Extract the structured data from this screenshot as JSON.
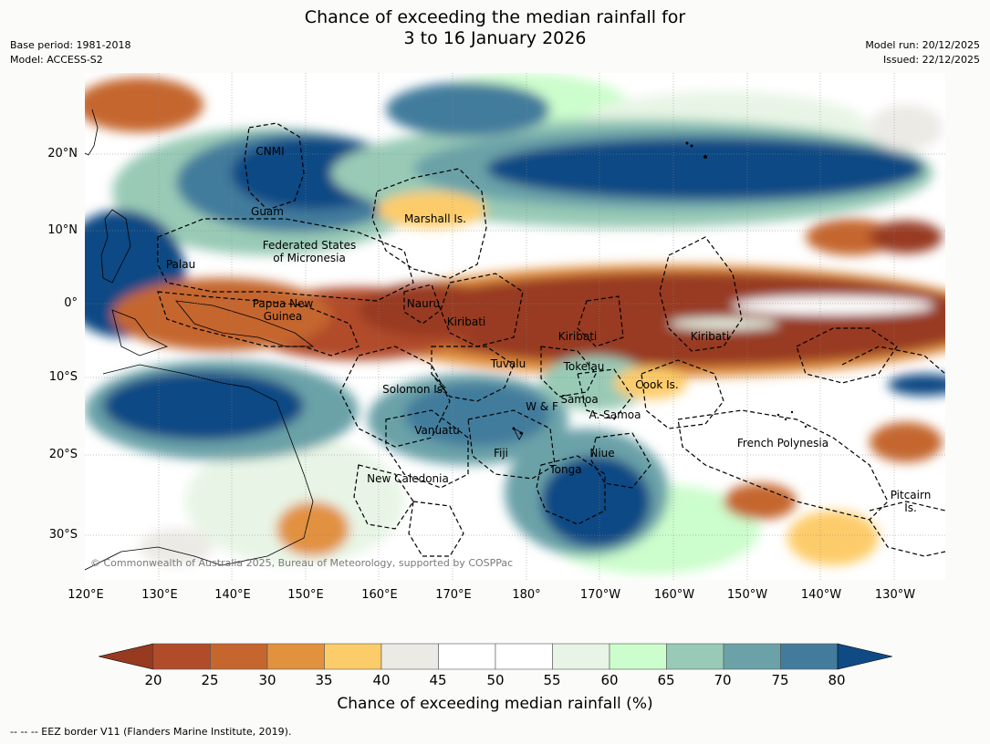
{
  "title_line1": "Chance of exceeding the median rainfall for",
  "title_line2": "3 to 16 January 2026",
  "meta_left": [
    "Base period: 1981-2018",
    "Model: ACCESS-S2"
  ],
  "meta_right": [
    "Model run: 20/12/2025",
    "Issued: 22/12/2025"
  ],
  "lat_labels": [
    "20°N",
    "10°N",
    "0°",
    "10°S",
    "20°S",
    "30°S"
  ],
  "lon_labels": [
    "120°E",
    "130°E",
    "140°E",
    "150°E",
    "160°E",
    "170°E",
    "180°",
    "170°W",
    "160°W",
    "150°W",
    "140°W",
    "130°W"
  ],
  "places": {
    "cnmi": "CNMI",
    "guam": "Guam",
    "marshall": "Marshall Is.",
    "fsm1": "Federated States",
    "fsm2": "of Micronesia",
    "palau": "Palau",
    "png1": "Papua New",
    "png2": "Guinea",
    "nauru": "Nauru",
    "kiribati1": "Kiribati",
    "kiribati2": "Kiribati",
    "kiribati3": "Kiribati",
    "tuvalu": "Tuvalu",
    "tokelau": "Tokelau",
    "cook": "Cook Is.",
    "solomon": "Solomon Is.",
    "samoa": "Samoa",
    "wf": "W & F",
    "asamoa": "A. Samoa",
    "vanuatu": "Vanuatu",
    "fiji": "Fiji",
    "niue": "Niue",
    "fp": "French Polynesia",
    "tonga": "Tonga",
    "newcal": "New Caledonia",
    "pitcairn1": "Pitcairn",
    "pitcairn2": "Is."
  },
  "copyright": "© Commonwealth of Australia 2025, Bureau of Meteorology, supported by COSPPac",
  "colorbar": {
    "ticks": [
      "20",
      "25",
      "30",
      "35",
      "40",
      "45",
      "50",
      "55",
      "60",
      "65",
      "70",
      "75",
      "80"
    ],
    "colors": [
      "#983a20",
      "#b14c2a",
      "#c5662f",
      "#e2913f",
      "#fdcc6a",
      "#eceae5",
      "#ffffff",
      "#ffffff",
      "#e8f5e6",
      "#ccfdcc",
      "#99cab6",
      "#6ba2a8",
      "#437b9c",
      "#104a84"
    ],
    "label": "Chance of exceeding median rainfall (%)"
  },
  "footer": "-- -- -- EEZ border V11 (Flanders Marine Institute, 2019)."
}
